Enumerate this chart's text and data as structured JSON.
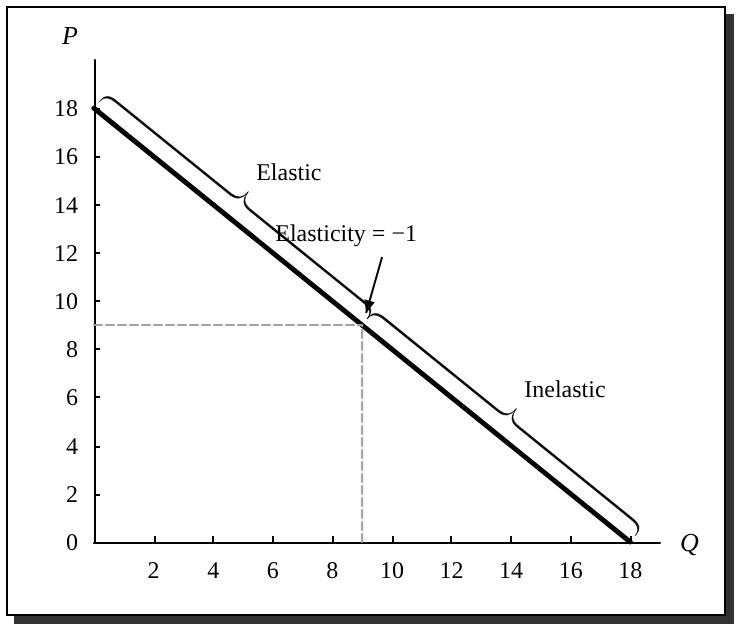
{
  "chart_data": {
    "type": "line",
    "xlabel": "Q",
    "ylabel": "P",
    "xlim": [
      0,
      19
    ],
    "ylim": [
      0,
      20
    ],
    "xticks": [
      2,
      4,
      6,
      8,
      10,
      12,
      14,
      16,
      18
    ],
    "yticks": [
      0,
      2,
      4,
      6,
      8,
      10,
      12,
      14,
      16,
      18
    ],
    "grid": false,
    "marker": "none",
    "series": [
      {
        "x": [
          0,
          18
        ],
        "values": [
          18,
          0
        ],
        "color": "#000000"
      },
      {
        "x": [
          0,
          9
        ],
        "values": [
          9,
          9
        ],
        "color": "#a0a0a0",
        "line_style": "dashed"
      },
      {
        "x": [
          9,
          9
        ],
        "values": [
          0,
          9
        ],
        "color": "#a0a0a0",
        "line_style": "dashed"
      }
    ],
    "annotations": [
      {
        "text": "Elastic",
        "x": 4.5,
        "y": 13.5
      },
      {
        "text": "Elasticity = −1",
        "x": 9,
        "y": 9
      },
      {
        "text": "Inelastic",
        "x": 13.5,
        "y": 4.5
      }
    ]
  }
}
